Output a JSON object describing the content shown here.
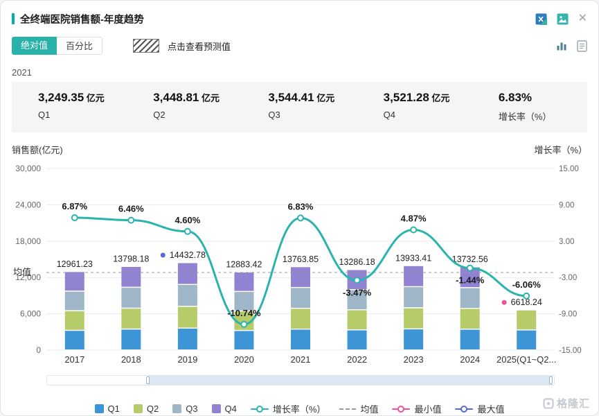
{
  "header": {
    "title": "全终端医院销售额-年度趋势"
  },
  "toolbar": {
    "absolute_button": "绝对值",
    "percent_button": "百分比",
    "forecast_hint": "点击查看预测值"
  },
  "period_label": "2021",
  "stats": [
    {
      "value": "3,249.35",
      "unit": "亿元",
      "label": "Q1"
    },
    {
      "value": "3,448.81",
      "unit": "亿元",
      "label": "Q2"
    },
    {
      "value": "3,544.41",
      "unit": "亿元",
      "label": "Q3"
    },
    {
      "value": "3,521.28",
      "unit": "亿元",
      "label": "Q4"
    },
    {
      "value": "6.83%",
      "unit": "",
      "label": "增长率（%）"
    }
  ],
  "chart_data": {
    "type": "bar",
    "subtype": "stacked-quarters-with-growth-line",
    "categories": [
      "2017",
      "2018",
      "2019",
      "2020",
      "2021",
      "2022",
      "2023",
      "2024",
      "2025(Q1~Q2..."
    ],
    "totals": [
      12961.23,
      13798.18,
      14432.78,
      12883.42,
      13763.85,
      13286.18,
      13933.41,
      13732.56,
      6618.24
    ],
    "total_labels": [
      "12961.23",
      "13798.18",
      "14432.78",
      "12883.42",
      "13763.85",
      "13286.18",
      "13933.41",
      "13732.56",
      "6618.24"
    ],
    "segments_per_year": [
      4,
      4,
      4,
      4,
      4,
      4,
      4,
      4,
      2
    ],
    "segment_names": [
      "Q1",
      "Q2",
      "Q3",
      "Q4"
    ],
    "growth_series_name": "增长率（%）",
    "growth": [
      6.87,
      6.46,
      4.6,
      -10.74,
      6.83,
      -3.47,
      4.87,
      -1.44,
      -6.06
    ],
    "growth_labels": [
      "6.87%",
      "6.46%",
      "4.60%",
      "-10.74%",
      "6.83%",
      "-3.47%",
      "4.87%",
      "-1.44%",
      "-6.06%"
    ],
    "growth_label_side": [
      "above",
      "above",
      "above",
      "above",
      "above",
      "below",
      "above",
      "below",
      "above"
    ],
    "left_axis": {
      "title": "销售额(亿元)",
      "min": 0,
      "max": 30000,
      "tick_values": [
        0,
        6000,
        12000,
        18000,
        24000,
        30000
      ],
      "ticks": [
        "0",
        "6,000",
        "12,000",
        "18,000",
        "24,000",
        "30,000"
      ]
    },
    "right_axis": {
      "title": "增长率（%）",
      "min": -15,
      "max": 15,
      "ticks": [
        "-15.00",
        "-9.00",
        "-3.00",
        "3.00",
        "9.00",
        "15.00"
      ]
    },
    "mean": {
      "label": "均值",
      "value": 12823.32
    },
    "max_point": {
      "category": "2019",
      "value": 14432.78
    },
    "min_point": {
      "category": "2025(Q1~Q2...",
      "value": 6618.24
    },
    "grid": true,
    "colors": {
      "q1": "#3e95d5",
      "q2": "#b6cb69",
      "q3": "#9fb6c8",
      "q4": "#9282d2",
      "line": "#2bb3ae",
      "mean": "#999999",
      "min": "#f0519c",
      "max": "#5668d6",
      "grid": "#ebebeb"
    }
  },
  "legend": [
    {
      "name": "q1",
      "label": "Q1",
      "type": "square",
      "color": "#3e95d5"
    },
    {
      "name": "q2",
      "label": "Q2",
      "type": "square",
      "color": "#b6cb69"
    },
    {
      "name": "q3",
      "label": "Q3",
      "type": "square",
      "color": "#9fb6c8"
    },
    {
      "name": "q4",
      "label": "Q4",
      "type": "square",
      "color": "#9282d2"
    },
    {
      "name": "growth-rate",
      "label": "增长率（%）",
      "type": "line-circle",
      "color": "#2bb3ae"
    },
    {
      "name": "mean",
      "label": "均值",
      "type": "dashed",
      "color": "#999999"
    },
    {
      "name": "min",
      "label": "最小值",
      "type": "line-circle",
      "color": "#f0519c"
    },
    {
      "name": "max",
      "label": "最大值",
      "type": "line-circle",
      "color": "#5668d6"
    }
  ],
  "watermark": "格隆汇",
  "icons": {
    "close": "✕"
  }
}
